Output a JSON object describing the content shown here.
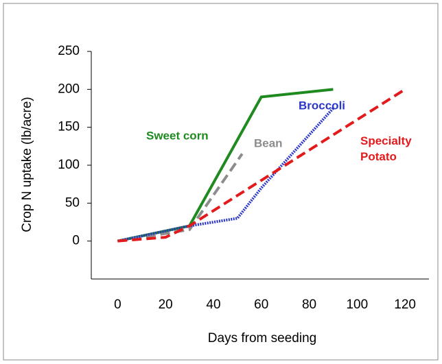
{
  "chart_data": {
    "type": "line",
    "x_label": "Days from seeding",
    "y_label": "Crop N uptake (lb/acre)",
    "xlim": [
      -11,
      130
    ],
    "xticks": [
      0,
      20,
      40,
      60,
      80,
      100,
      120
    ],
    "ylim": [
      -50,
      250
    ],
    "yticks": [
      0,
      50,
      100,
      150,
      200,
      250
    ],
    "series": [
      {
        "name": "Sweet corn",
        "color": "#1f8a1f",
        "dash": "",
        "x": [
          0,
          30,
          60,
          90
        ],
        "values": [
          0,
          20,
          190,
          200
        ]
      },
      {
        "name": "Bean",
        "color": "#8c8c8c",
        "dash": "14 7",
        "x": [
          0,
          30,
          52
        ],
        "values": [
          0,
          15,
          115
        ]
      },
      {
        "name": "Broccoli",
        "color": "#2a36c8",
        "dash": "2 1.5",
        "x": [
          0,
          30,
          50,
          60,
          90
        ],
        "values": [
          0,
          20,
          30,
          70,
          175
        ]
      },
      {
        "name": "Specialty Potato",
        "color": "#e31a1c",
        "dash": "14 7",
        "x": [
          0,
          20,
          30,
          60,
          120
        ],
        "values": [
          0,
          5,
          20,
          80,
          200
        ]
      }
    ]
  }
}
